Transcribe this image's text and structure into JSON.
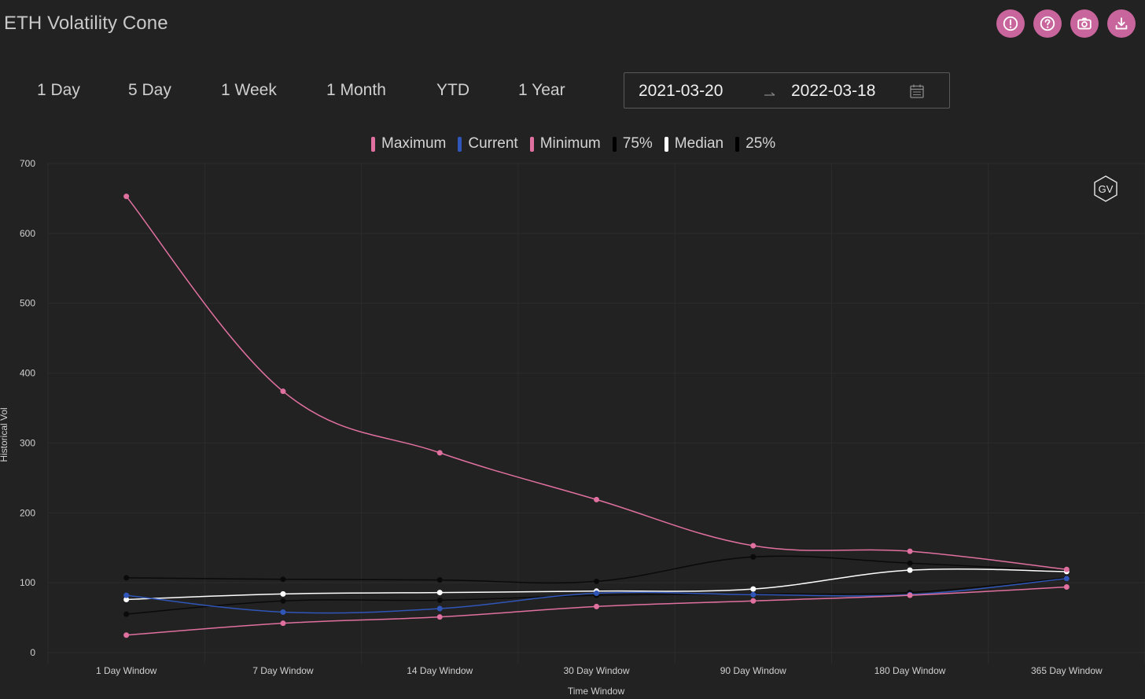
{
  "title": "ETH Volatility Cone",
  "toolbar": {
    "buttons": [
      {
        "name": "info-button",
        "icon": "exclamation-circle-icon"
      },
      {
        "name": "help-button",
        "icon": "question-circle-icon"
      },
      {
        "name": "screenshot-button",
        "icon": "camera-icon"
      },
      {
        "name": "download-button",
        "icon": "download-icon"
      }
    ]
  },
  "range_tabs": [
    "1 Day",
    "5 Day",
    "1 Week",
    "1 Month",
    "YTD",
    "1 Year"
  ],
  "date_range": {
    "start": "2021-03-20",
    "end": "2022-03-18",
    "separator_icon": "arrow-right-icon",
    "calendar_icon": "calendar-icon"
  },
  "watermark": "GV",
  "colors": {
    "background": "#222222",
    "pink": "#e0709f",
    "blue": "#2f56b8",
    "black": "#0a0a0a",
    "white": "#ffffff",
    "grid": "#2c2c2c",
    "accent_button": "#c8659c"
  },
  "chart_data": {
    "type": "line",
    "xlabel": "Time Window",
    "ylabel": "Historical Vol",
    "ylim": [
      0,
      700
    ],
    "yticks": [
      0,
      100,
      200,
      300,
      400,
      500,
      600,
      700
    ],
    "categories": [
      "1 Day Window",
      "7 Day Window",
      "14 Day Window",
      "30 Day Window",
      "90 Day Window",
      "180 Day Window",
      "365 Day Window"
    ],
    "legend_position": "top-center",
    "grid": true,
    "series": [
      {
        "name": "Maximum",
        "color": "#e0709f",
        "values": [
          653,
          374,
          286,
          219,
          153,
          145,
          119
        ]
      },
      {
        "name": "Current",
        "color": "#2f56b8",
        "values": [
          82,
          58,
          63,
          85,
          83,
          83,
          106
        ]
      },
      {
        "name": "Minimum",
        "color": "#e0709f",
        "values": [
          25,
          42,
          51,
          66,
          74,
          82,
          94
        ]
      },
      {
        "name": "75%",
        "color": "#0a0a0a",
        "values": [
          107,
          105,
          104,
          102,
          137,
          128,
          117
        ]
      },
      {
        "name": "Median",
        "color": "#ffffff",
        "values": [
          76,
          84,
          86,
          88,
          91,
          118,
          116
        ]
      },
      {
        "name": "25%",
        "color": "#0a0a0a",
        "values": [
          55,
          74,
          75,
          82,
          84,
          86,
          107
        ]
      }
    ]
  }
}
